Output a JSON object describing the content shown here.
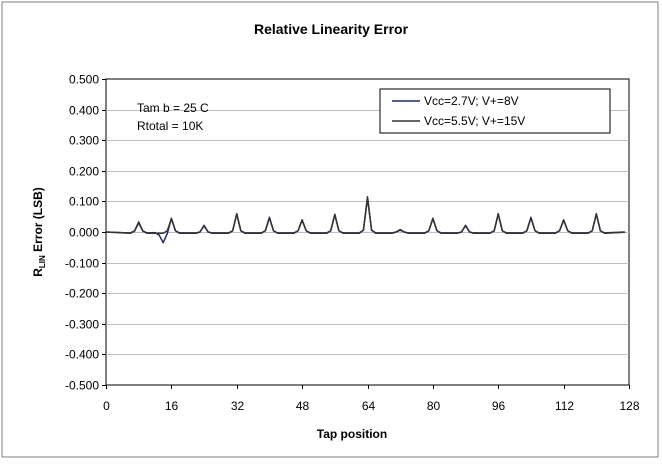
{
  "chart_data": {
    "type": "line",
    "title": "Relative Linearity Error",
    "xlabel": "Tap position",
    "ylabel_main": "R",
    "ylabel_sub": "LIN",
    "ylabel_rest": " Error (LSB)",
    "xlim": [
      0,
      128
    ],
    "ylim": [
      -0.5,
      0.5
    ],
    "xticks": [
      0,
      16,
      32,
      48,
      64,
      80,
      96,
      112,
      128
    ],
    "xtick_labels": [
      "0",
      "16",
      "32",
      "48",
      "64",
      "80",
      "96",
      "112",
      "128"
    ],
    "yticks": [
      0.5,
      0.4,
      0.3,
      0.2,
      0.1,
      0.0,
      -0.1,
      -0.2,
      -0.3,
      -0.4,
      -0.5
    ],
    "ytick_labels": [
      "0.500",
      "0.400",
      "0.300",
      "0.200",
      "0.100",
      "0.000",
      "-0.100",
      "-0.200",
      "-0.300",
      "-0.400",
      "-0.500"
    ],
    "grid": "horizontal",
    "legend_position": "top-right",
    "annotations": [
      "Tam b = 25 C",
      "Rtotal = 10K"
    ],
    "series": [
      {
        "name": "Vcc=2.7V; V+=8V",
        "color": "#1f2a6b",
        "points": [
          [
            0,
            0
          ],
          [
            6,
            -0.003
          ],
          [
            7,
            0.004
          ],
          [
            8,
            0.033
          ],
          [
            9,
            0.004
          ],
          [
            10,
            -0.003
          ],
          [
            12,
            -0.002
          ],
          [
            13,
            -0.01
          ],
          [
            14,
            -0.035
          ],
          [
            15,
            -0.005
          ],
          [
            16,
            0.045
          ],
          [
            17,
            0.004
          ],
          [
            18,
            -0.003
          ],
          [
            22,
            -0.003
          ],
          [
            23,
            0.0
          ],
          [
            24,
            0.022
          ],
          [
            25,
            0.0
          ],
          [
            26,
            -0.003
          ],
          [
            30,
            -0.003
          ],
          [
            31,
            0.004
          ],
          [
            32,
            0.06
          ],
          [
            33,
            0.004
          ],
          [
            34,
            -0.003
          ],
          [
            38,
            -0.003
          ],
          [
            39,
            0.004
          ],
          [
            40,
            0.048
          ],
          [
            41,
            0.004
          ],
          [
            42,
            -0.003
          ],
          [
            46,
            -0.003
          ],
          [
            47,
            0.004
          ],
          [
            48,
            0.04
          ],
          [
            49,
            0.004
          ],
          [
            50,
            -0.003
          ],
          [
            54,
            -0.003
          ],
          [
            55,
            0.004
          ],
          [
            56,
            0.058
          ],
          [
            57,
            0.004
          ],
          [
            58,
            -0.003
          ],
          [
            62,
            -0.003
          ],
          [
            63,
            0.006
          ],
          [
            64,
            0.115
          ],
          [
            65,
            0.006
          ],
          [
            66,
            -0.003
          ],
          [
            70,
            -0.003
          ],
          [
            71,
            0.0
          ],
          [
            72,
            0.008
          ],
          [
            73,
            0.0
          ],
          [
            74,
            -0.003
          ],
          [
            78,
            -0.003
          ],
          [
            79,
            0.004
          ],
          [
            80,
            0.045
          ],
          [
            81,
            0.004
          ],
          [
            82,
            -0.003
          ],
          [
            86,
            -0.003
          ],
          [
            87,
            0.0
          ],
          [
            88,
            0.022
          ],
          [
            89,
            0.0
          ],
          [
            90,
            -0.003
          ],
          [
            94,
            -0.003
          ],
          [
            95,
            0.004
          ],
          [
            96,
            0.06
          ],
          [
            97,
            0.004
          ],
          [
            98,
            -0.003
          ],
          [
            102,
            -0.003
          ],
          [
            103,
            0.004
          ],
          [
            104,
            0.048
          ],
          [
            105,
            0.004
          ],
          [
            106,
            -0.003
          ],
          [
            110,
            -0.003
          ],
          [
            111,
            0.004
          ],
          [
            112,
            0.04
          ],
          [
            113,
            0.004
          ],
          [
            114,
            -0.003
          ],
          [
            118,
            -0.003
          ],
          [
            119,
            0.004
          ],
          [
            120,
            0.06
          ],
          [
            121,
            0.004
          ],
          [
            122,
            -0.003
          ],
          [
            127,
            0
          ]
        ]
      },
      {
        "name": "Vcc=5.5V; V+=15V",
        "color": "#333333",
        "points": [
          [
            0,
            0
          ],
          [
            6,
            -0.004
          ],
          [
            7,
            0.003
          ],
          [
            8,
            0.03
          ],
          [
            9,
            0.003
          ],
          [
            10,
            -0.004
          ],
          [
            14,
            -0.004
          ],
          [
            15,
            0.004
          ],
          [
            16,
            0.043
          ],
          [
            17,
            0.004
          ],
          [
            18,
            -0.004
          ],
          [
            22,
            -0.004
          ],
          [
            23,
            0.0
          ],
          [
            24,
            0.02
          ],
          [
            25,
            0.0
          ],
          [
            26,
            -0.004
          ],
          [
            30,
            -0.004
          ],
          [
            31,
            0.004
          ],
          [
            32,
            0.058
          ],
          [
            33,
            0.004
          ],
          [
            34,
            -0.004
          ],
          [
            38,
            -0.004
          ],
          [
            39,
            0.004
          ],
          [
            40,
            0.046
          ],
          [
            41,
            0.004
          ],
          [
            42,
            -0.004
          ],
          [
            46,
            -0.004
          ],
          [
            47,
            0.004
          ],
          [
            48,
            0.038
          ],
          [
            49,
            0.004
          ],
          [
            50,
            -0.004
          ],
          [
            54,
            -0.004
          ],
          [
            55,
            0.004
          ],
          [
            56,
            0.056
          ],
          [
            57,
            0.004
          ],
          [
            58,
            -0.004
          ],
          [
            62,
            -0.004
          ],
          [
            63,
            0.006
          ],
          [
            64,
            0.11
          ],
          [
            65,
            0.006
          ],
          [
            66,
            -0.004
          ],
          [
            70,
            -0.004
          ],
          [
            71,
            0.0
          ],
          [
            72,
            0.006
          ],
          [
            73,
            0.0
          ],
          [
            74,
            -0.004
          ],
          [
            78,
            -0.004
          ],
          [
            79,
            0.004
          ],
          [
            80,
            0.043
          ],
          [
            81,
            0.004
          ],
          [
            82,
            -0.004
          ],
          [
            86,
            -0.004
          ],
          [
            87,
            0.0
          ],
          [
            88,
            0.02
          ],
          [
            89,
            0.0
          ],
          [
            90,
            -0.004
          ],
          [
            94,
            -0.004
          ],
          [
            95,
            0.004
          ],
          [
            96,
            0.058
          ],
          [
            97,
            0.004
          ],
          [
            98,
            -0.004
          ],
          [
            102,
            -0.004
          ],
          [
            103,
            0.004
          ],
          [
            104,
            0.046
          ],
          [
            105,
            0.004
          ],
          [
            106,
            -0.004
          ],
          [
            110,
            -0.004
          ],
          [
            111,
            0.004
          ],
          [
            112,
            0.038
          ],
          [
            113,
            0.004
          ],
          [
            114,
            -0.004
          ],
          [
            118,
            -0.004
          ],
          [
            119,
            0.004
          ],
          [
            120,
            0.058
          ],
          [
            121,
            0.004
          ],
          [
            122,
            -0.004
          ],
          [
            127,
            -0.001
          ]
        ]
      }
    ]
  }
}
